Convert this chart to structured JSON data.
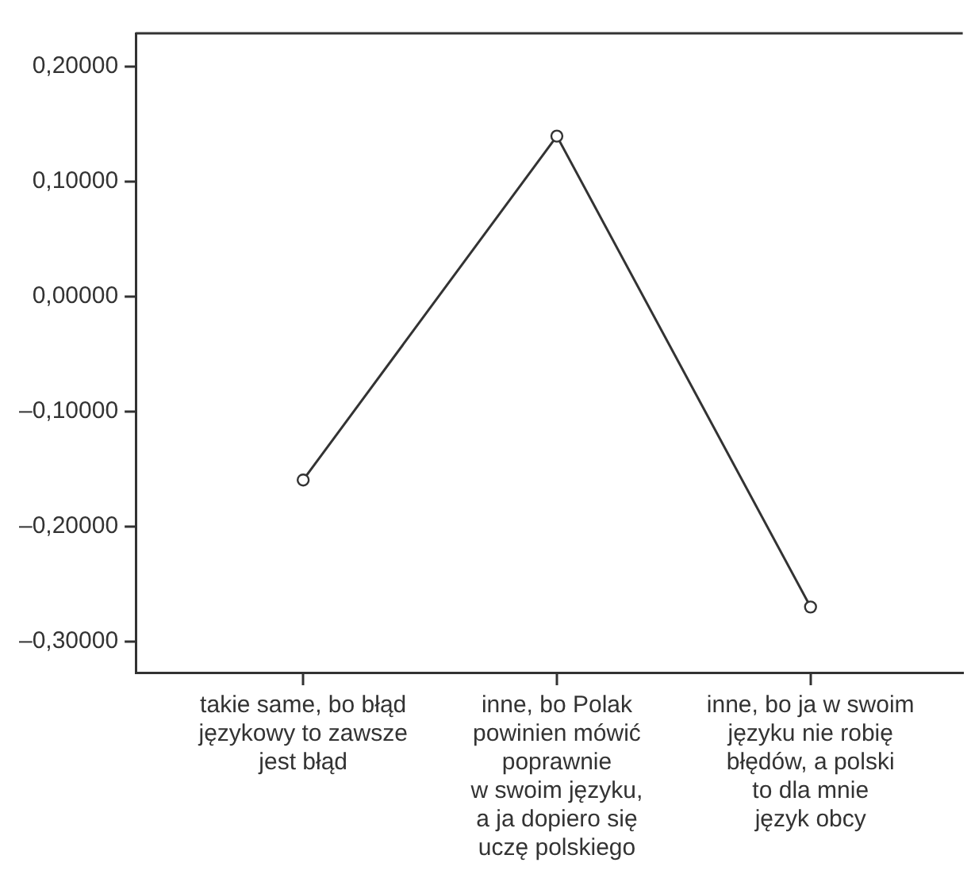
{
  "chart_data": {
    "type": "line",
    "categories": [
      "takie same, bo błąd\njęzykowy to zawsze\njest błąd",
      "inne, bo Polak\npowinien mówić\npoprawnie\nw swoim języku,\na ja dopiero się\nuczę polskiego",
      "inne, bo ja w swoim\njęzyku nie robię\nbłędów, a polski\nto dla mnie\njęzyk obcy"
    ],
    "series": [
      {
        "color": "#333333",
        "values": [
          -0.1595,
          0.1396,
          -0.27
        ]
      }
    ],
    "ylim": [
      -0.327,
      0.229
    ],
    "yticks": [
      {
        "value": 0.2,
        "label": "0,20000"
      },
      {
        "value": 0.1,
        "label": "0,10000"
      },
      {
        "value": 0,
        "label": "0,00000"
      },
      {
        "value": -0.1,
        "label": "–0,10000"
      },
      {
        "value": -0.2,
        "label": "–0,20000"
      },
      {
        "value": -0.3,
        "label": "–0,30000"
      }
    ],
    "marker": "circle",
    "line_style": "solid",
    "grid": false,
    "legend": false
  }
}
